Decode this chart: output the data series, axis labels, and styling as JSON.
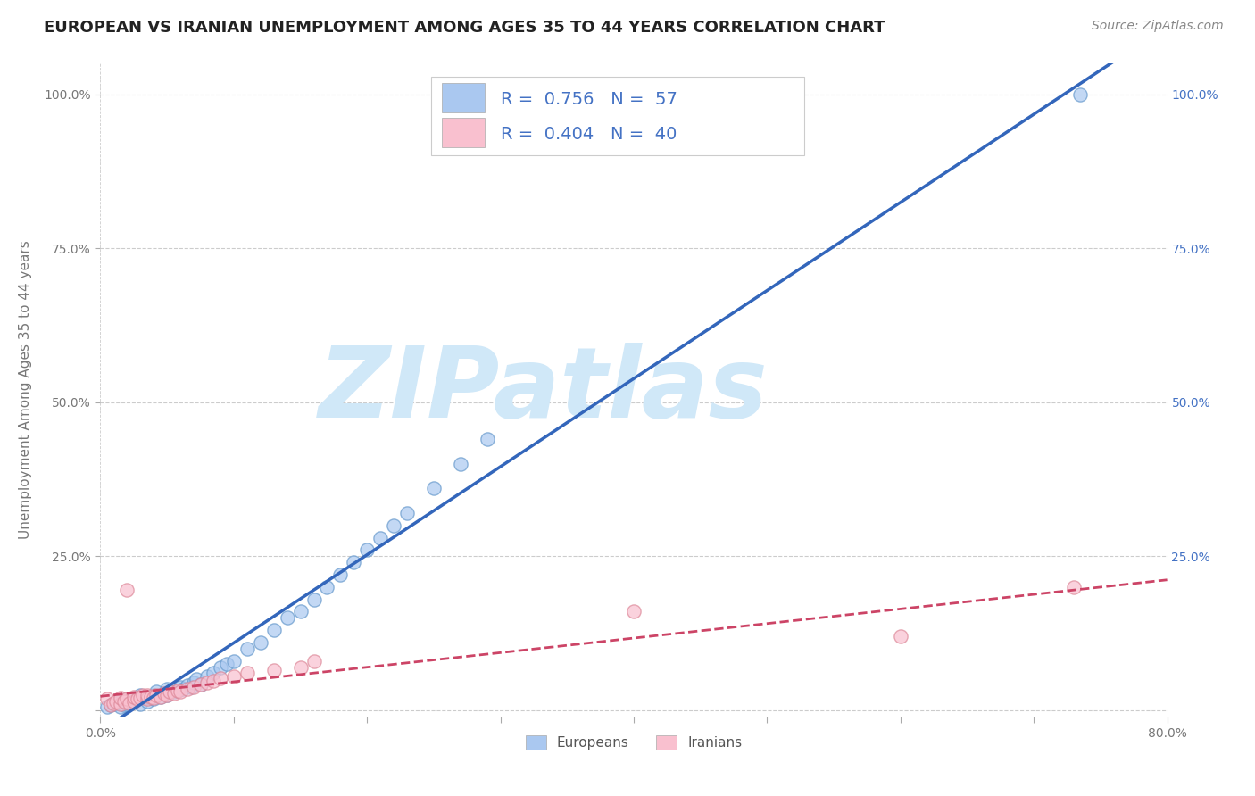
{
  "title": "EUROPEAN VS IRANIAN UNEMPLOYMENT AMONG AGES 35 TO 44 YEARS CORRELATION CHART",
  "source_text": "Source: ZipAtlas.com",
  "ylabel": "Unemployment Among Ages 35 to 44 years",
  "xlabel": "",
  "xlim": [
    0.0,
    0.8
  ],
  "ylim": [
    -0.01,
    1.05
  ],
  "xticks": [
    0.0,
    0.1,
    0.2,
    0.3,
    0.4,
    0.5,
    0.6,
    0.7,
    0.8
  ],
  "xticklabels": [
    "0.0%",
    "",
    "",
    "",
    "",
    "",
    "",
    "",
    "80.0%"
  ],
  "ytick_positions": [
    0.0,
    0.25,
    0.5,
    0.75,
    1.0
  ],
  "ytick_labels": [
    "",
    "25.0%",
    "50.0%",
    "75.0%",
    "100.0%"
  ],
  "grid_color": "#cccccc",
  "background_color": "#ffffff",
  "european_color": "#aac8f0",
  "european_edge_color": "#6699cc",
  "european_line_color": "#3366bb",
  "iranian_color": "#f9c0cf",
  "iranian_edge_color": "#dd8899",
  "iranian_line_color": "#cc4466",
  "european_R": 0.756,
  "european_N": 57,
  "iranian_R": 0.404,
  "iranian_N": 40,
  "legend_R_color": "#4472c4",
  "watermark": "ZIPatlas",
  "watermark_color": "#d0e8f8",
  "europeans_x": [
    0.005,
    0.008,
    0.01,
    0.012,
    0.015,
    0.015,
    0.018,
    0.02,
    0.02,
    0.022,
    0.025,
    0.025,
    0.028,
    0.03,
    0.03,
    0.032,
    0.035,
    0.035,
    0.038,
    0.04,
    0.04,
    0.042,
    0.045,
    0.048,
    0.05,
    0.05,
    0.055,
    0.058,
    0.06,
    0.062,
    0.065,
    0.068,
    0.07,
    0.072,
    0.075,
    0.08,
    0.085,
    0.09,
    0.095,
    0.1,
    0.11,
    0.12,
    0.13,
    0.14,
    0.15,
    0.16,
    0.17,
    0.18,
    0.19,
    0.2,
    0.21,
    0.22,
    0.23,
    0.25,
    0.27,
    0.29,
    0.735
  ],
  "europeans_y": [
    0.005,
    0.008,
    0.01,
    0.012,
    0.005,
    0.015,
    0.008,
    0.01,
    0.018,
    0.012,
    0.015,
    0.02,
    0.018,
    0.01,
    0.025,
    0.02,
    0.015,
    0.022,
    0.02,
    0.018,
    0.025,
    0.03,
    0.022,
    0.028,
    0.025,
    0.035,
    0.03,
    0.032,
    0.038,
    0.035,
    0.04,
    0.038,
    0.045,
    0.05,
    0.042,
    0.055,
    0.06,
    0.07,
    0.075,
    0.08,
    0.1,
    0.11,
    0.13,
    0.15,
    0.16,
    0.18,
    0.2,
    0.22,
    0.24,
    0.26,
    0.28,
    0.3,
    0.32,
    0.36,
    0.4,
    0.44,
    1.0
  ],
  "iranians_x": [
    0.005,
    0.008,
    0.01,
    0.012,
    0.015,
    0.015,
    0.018,
    0.02,
    0.022,
    0.025,
    0.025,
    0.028,
    0.03,
    0.032,
    0.035,
    0.035,
    0.038,
    0.04,
    0.042,
    0.045,
    0.048,
    0.05,
    0.052,
    0.055,
    0.058,
    0.06,
    0.065,
    0.07,
    0.075,
    0.08,
    0.085,
    0.09,
    0.1,
    0.11,
    0.13,
    0.15,
    0.16,
    0.4,
    0.6,
    0.73
  ],
  "iranians_y": [
    0.018,
    0.008,
    0.012,
    0.015,
    0.01,
    0.02,
    0.015,
    0.018,
    0.012,
    0.015,
    0.022,
    0.018,
    0.02,
    0.025,
    0.018,
    0.025,
    0.022,
    0.02,
    0.025,
    0.022,
    0.028,
    0.025,
    0.03,
    0.028,
    0.032,
    0.03,
    0.035,
    0.038,
    0.042,
    0.045,
    0.048,
    0.052,
    0.055,
    0.06,
    0.065,
    0.07,
    0.08,
    0.16,
    0.12,
    0.2
  ],
  "iranian_extra_x": [
    0.02
  ],
  "iranian_extra_y": [
    0.195
  ],
  "title_fontsize": 13,
  "axis_fontsize": 11,
  "tick_fontsize": 10,
  "legend_fontsize": 14,
  "source_fontsize": 10
}
